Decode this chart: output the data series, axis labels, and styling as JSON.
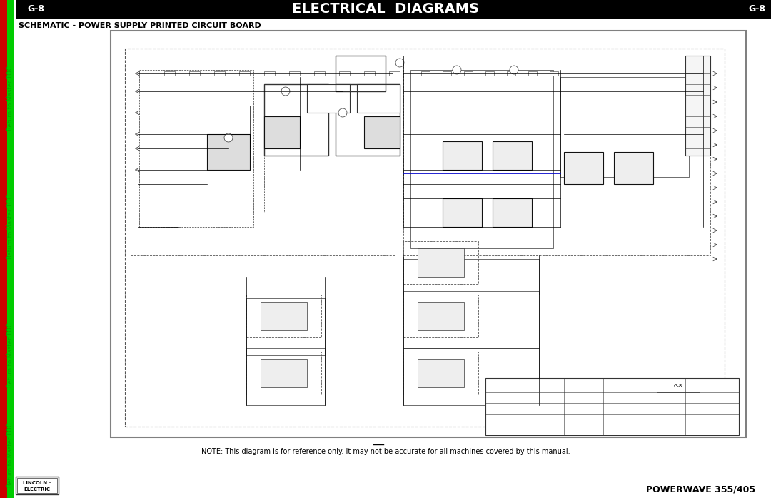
{
  "title": "ELECTRICAL  DIAGRAMS",
  "page_label": "G-8",
  "subtitle": "SCHEMATIC - POWER SUPPLY PRINTED CIRCUIT BOARD",
  "note_text": "NOTE: This diagram is for reference only. It may not be accurate for all machines covered by this manual.",
  "footer_right": "POWERWAVE 355/405",
  "bg_color": "#ffffff",
  "sidebar_red_color": "#cc0000",
  "sidebar_green_color": "#00aa00",
  "sidebar_green_line_color": "#00cc00",
  "diagram_border_color": "#808080",
  "schematic_line_color": "#000000",
  "title_fontsize": 14,
  "subtitle_fontsize": 8,
  "page_label_fontsize": 9,
  "note_fontsize": 7,
  "footer_fontsize": 9,
  "sidebar_fontsize": 6
}
